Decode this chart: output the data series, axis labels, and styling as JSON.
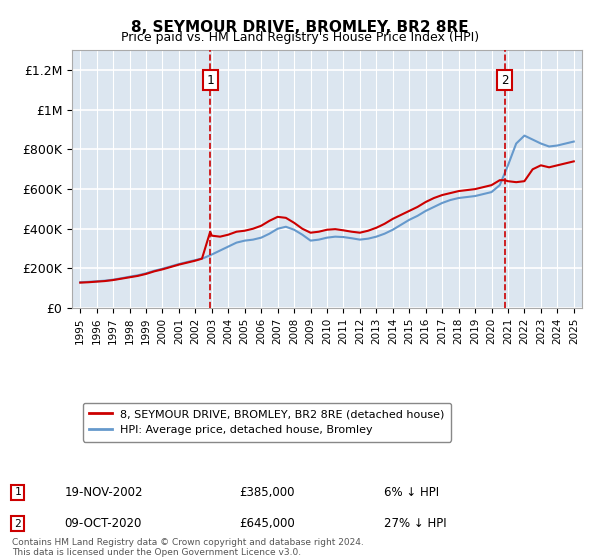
{
  "title": "8, SEYMOUR DRIVE, BROMLEY, BR2 8RE",
  "subtitle": "Price paid vs. HM Land Registry's House Price Index (HPI)",
  "ylabel_ticks": [
    "£0",
    "£200K",
    "£400K",
    "£600K",
    "£800K",
    "£1M",
    "£1.2M"
  ],
  "ytick_vals": [
    0,
    200000,
    400000,
    600000,
    800000,
    1000000,
    1200000
  ],
  "ylim": [
    0,
    1300000
  ],
  "xlim_start": 1994.5,
  "xlim_end": 2025.5,
  "bg_color": "#dce6f0",
  "plot_bg": "#dce6f0",
  "grid_color": "#ffffff",
  "red_line_color": "#cc0000",
  "blue_line_color": "#6699cc",
  "marker1_year": 2002.9,
  "marker2_year": 2020.8,
  "marker1_label": "1",
  "marker2_label": "2",
  "marker1_price": 385000,
  "marker2_price": 645000,
  "legend_line1": "8, SEYMOUR DRIVE, BROMLEY, BR2 8RE (detached house)",
  "legend_line2": "HPI: Average price, detached house, Bromley",
  "annot1_date": "19-NOV-2002",
  "annot1_price": "£385,000",
  "annot1_hpi": "6% ↓ HPI",
  "annot2_date": "09-OCT-2020",
  "annot2_price": "£645,000",
  "annot2_hpi": "27% ↓ HPI",
  "footnote": "Contains HM Land Registry data © Crown copyright and database right 2024.\nThis data is licensed under the Open Government Licence v3.0.",
  "hpi_years": [
    1995,
    1995.5,
    1996,
    1996.5,
    1997,
    1997.5,
    1998,
    1998.5,
    1999,
    1999.5,
    2000,
    2000.5,
    2001,
    2001.5,
    2002,
    2002.5,
    2003,
    2003.5,
    2004,
    2004.5,
    2005,
    2005.5,
    2006,
    2006.5,
    2007,
    2007.5,
    2008,
    2008.5,
    2009,
    2009.5,
    2010,
    2010.5,
    2011,
    2011.5,
    2012,
    2012.5,
    2013,
    2013.5,
    2014,
    2014.5,
    2015,
    2015.5,
    2016,
    2016.5,
    2017,
    2017.5,
    2018,
    2018.5,
    2019,
    2019.5,
    2020,
    2020.5,
    2021,
    2021.5,
    2022,
    2022.5,
    2023,
    2023.5,
    2024,
    2024.5,
    2025
  ],
  "hpi_values": [
    130000,
    132000,
    135000,
    138000,
    143000,
    150000,
    158000,
    165000,
    175000,
    188000,
    198000,
    210000,
    222000,
    232000,
    242000,
    252000,
    270000,
    290000,
    310000,
    330000,
    340000,
    345000,
    355000,
    375000,
    400000,
    410000,
    395000,
    370000,
    340000,
    345000,
    355000,
    360000,
    358000,
    352000,
    345000,
    350000,
    360000,
    375000,
    395000,
    420000,
    445000,
    465000,
    490000,
    510000,
    530000,
    545000,
    555000,
    560000,
    565000,
    575000,
    585000,
    620000,
    720000,
    830000,
    870000,
    850000,
    830000,
    815000,
    820000,
    830000,
    840000
  ],
  "price_years": [
    1995,
    1995.5,
    1996,
    1996.5,
    1997,
    1997.5,
    1998,
    1998.5,
    1999,
    1999.5,
    2000,
    2000.5,
    2001,
    2001.5,
    2002,
    2002.4,
    2002.9,
    2003,
    2003.5,
    2004,
    2004.5,
    2005,
    2005.5,
    2006,
    2006.5,
    2007,
    2007.5,
    2008,
    2008.5,
    2009,
    2009.5,
    2010,
    2010.5,
    2011,
    2011.5,
    2012,
    2012.5,
    2013,
    2013.5,
    2014,
    2014.5,
    2015,
    2015.5,
    2016,
    2016.5,
    2017,
    2017.5,
    2018,
    2018.5,
    2019,
    2019.5,
    2020,
    2020.5,
    2020.8,
    2021,
    2021.5,
    2022,
    2022.5,
    2023,
    2023.5,
    2024,
    2024.5,
    2025
  ],
  "price_values": [
    128000,
    130000,
    133000,
    136000,
    141000,
    148000,
    155000,
    162000,
    172000,
    185000,
    195000,
    207000,
    219000,
    229000,
    239000,
    249000,
    385000,
    365000,
    360000,
    370000,
    385000,
    390000,
    400000,
    415000,
    440000,
    460000,
    455000,
    430000,
    400000,
    380000,
    385000,
    395000,
    398000,
    392000,
    385000,
    380000,
    390000,
    405000,
    425000,
    450000,
    470000,
    490000,
    510000,
    535000,
    555000,
    570000,
    580000,
    590000,
    595000,
    600000,
    610000,
    620000,
    645000,
    645000,
    640000,
    635000,
    640000,
    700000,
    720000,
    710000,
    720000,
    730000,
    740000
  ]
}
